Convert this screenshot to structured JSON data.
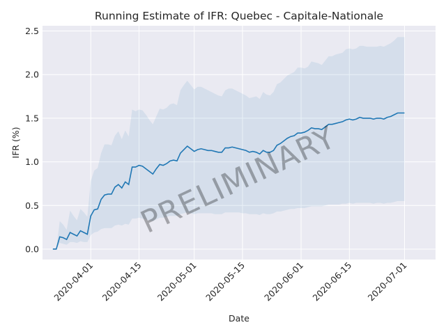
{
  "chart_data": {
    "type": "line",
    "title": "Running Estimate of IFR: Quebec - Capitale-Nationale",
    "xlabel": "Date",
    "ylabel": "IFR (%)",
    "watermark": "PRELIMINARY",
    "x_start": "2020-03-21",
    "xlim": [
      "2020-03-18",
      "2020-07-10"
    ],
    "ylim": [
      -0.12,
      2.56
    ],
    "x_ticks": [
      "2020-04-01",
      "2020-04-15",
      "2020-05-01",
      "2020-05-15",
      "2020-06-01",
      "2020-06-15",
      "2020-07-01"
    ],
    "y_ticks": [
      "0.0",
      "0.5",
      "1.0",
      "1.5",
      "2.0",
      "2.5"
    ],
    "grid": true,
    "legend": "none",
    "colors": {
      "line": "#1f77b4",
      "band": "#1f77b4",
      "background": "#eaeaf2"
    },
    "series": [
      {
        "values": [
          0.0,
          0.0,
          0.14,
          0.13,
          0.11,
          0.19,
          0.17,
          0.15,
          0.21,
          0.19,
          0.17,
          0.38,
          0.45,
          0.46,
          0.57,
          0.62,
          0.63,
          0.63,
          0.71,
          0.74,
          0.7,
          0.77,
          0.74,
          0.94,
          0.94,
          0.96,
          0.95,
          0.92,
          0.89,
          0.86,
          0.92,
          0.97,
          0.96,
          0.98,
          1.01,
          1.02,
          1.01,
          1.1,
          1.14,
          1.18,
          1.15,
          1.12,
          1.14,
          1.15,
          1.14,
          1.13,
          1.13,
          1.12,
          1.11,
          1.11,
          1.16,
          1.16,
          1.17,
          1.16,
          1.15,
          1.14,
          1.13,
          1.11,
          1.12,
          1.11,
          1.09,
          1.13,
          1.11,
          1.11,
          1.13,
          1.19,
          1.21,
          1.24,
          1.27,
          1.29,
          1.3,
          1.33,
          1.33,
          1.34,
          1.36,
          1.39,
          1.38,
          1.38,
          1.37,
          1.4,
          1.43,
          1.43,
          1.44,
          1.45,
          1.46,
          1.48,
          1.49,
          1.48,
          1.49,
          1.51,
          1.5,
          1.5,
          1.5,
          1.49,
          1.5,
          1.5,
          1.49,
          1.51,
          1.52,
          1.54,
          1.56,
          1.56,
          1.56
        ],
        "lower": [
          0.0,
          0.0,
          0.07,
          0.06,
          0.05,
          0.08,
          0.08,
          0.07,
          0.09,
          0.08,
          0.08,
          0.16,
          0.19,
          0.2,
          0.23,
          0.24,
          0.24,
          0.24,
          0.27,
          0.28,
          0.27,
          0.29,
          0.28,
          0.35,
          0.35,
          0.36,
          0.35,
          0.34,
          0.33,
          0.32,
          0.34,
          0.36,
          0.36,
          0.37,
          0.38,
          0.38,
          0.38,
          0.4,
          0.41,
          0.42,
          0.41,
          0.4,
          0.41,
          0.41,
          0.41,
          0.41,
          0.41,
          0.4,
          0.4,
          0.4,
          0.42,
          0.42,
          0.42,
          0.42,
          0.42,
          0.41,
          0.41,
          0.4,
          0.4,
          0.4,
          0.39,
          0.41,
          0.4,
          0.4,
          0.41,
          0.43,
          0.43,
          0.44,
          0.45,
          0.46,
          0.46,
          0.47,
          0.47,
          0.47,
          0.48,
          0.49,
          0.49,
          0.49,
          0.49,
          0.5,
          0.51,
          0.51,
          0.51,
          0.51,
          0.52,
          0.52,
          0.53,
          0.52,
          0.53,
          0.53,
          0.53,
          0.53,
          0.53,
          0.52,
          0.53,
          0.53,
          0.52,
          0.53,
          0.53,
          0.54,
          0.55,
          0.55,
          0.55
        ],
        "upper": [
          0.0,
          0.0,
          0.32,
          0.28,
          0.22,
          0.44,
          0.38,
          0.33,
          0.46,
          0.42,
          0.37,
          0.78,
          0.9,
          0.93,
          1.1,
          1.2,
          1.2,
          1.19,
          1.3,
          1.35,
          1.26,
          1.36,
          1.29,
          1.6,
          1.58,
          1.6,
          1.59,
          1.54,
          1.48,
          1.43,
          1.52,
          1.61,
          1.6,
          1.62,
          1.66,
          1.67,
          1.65,
          1.82,
          1.88,
          1.93,
          1.88,
          1.83,
          1.86,
          1.86,
          1.84,
          1.82,
          1.8,
          1.78,
          1.76,
          1.75,
          1.82,
          1.84,
          1.84,
          1.82,
          1.8,
          1.78,
          1.76,
          1.73,
          1.74,
          1.75,
          1.72,
          1.8,
          1.77,
          1.76,
          1.8,
          1.89,
          1.91,
          1.95,
          1.99,
          2.01,
          2.03,
          2.08,
          2.08,
          2.07,
          2.09,
          2.15,
          2.14,
          2.13,
          2.11,
          2.16,
          2.21,
          2.21,
          2.23,
          2.24,
          2.25,
          2.29,
          2.3,
          2.29,
          2.3,
          2.33,
          2.33,
          2.32,
          2.32,
          2.32,
          2.32,
          2.33,
          2.32,
          2.34,
          2.36,
          2.39,
          2.43,
          2.43,
          2.43
        ]
      }
    ]
  }
}
